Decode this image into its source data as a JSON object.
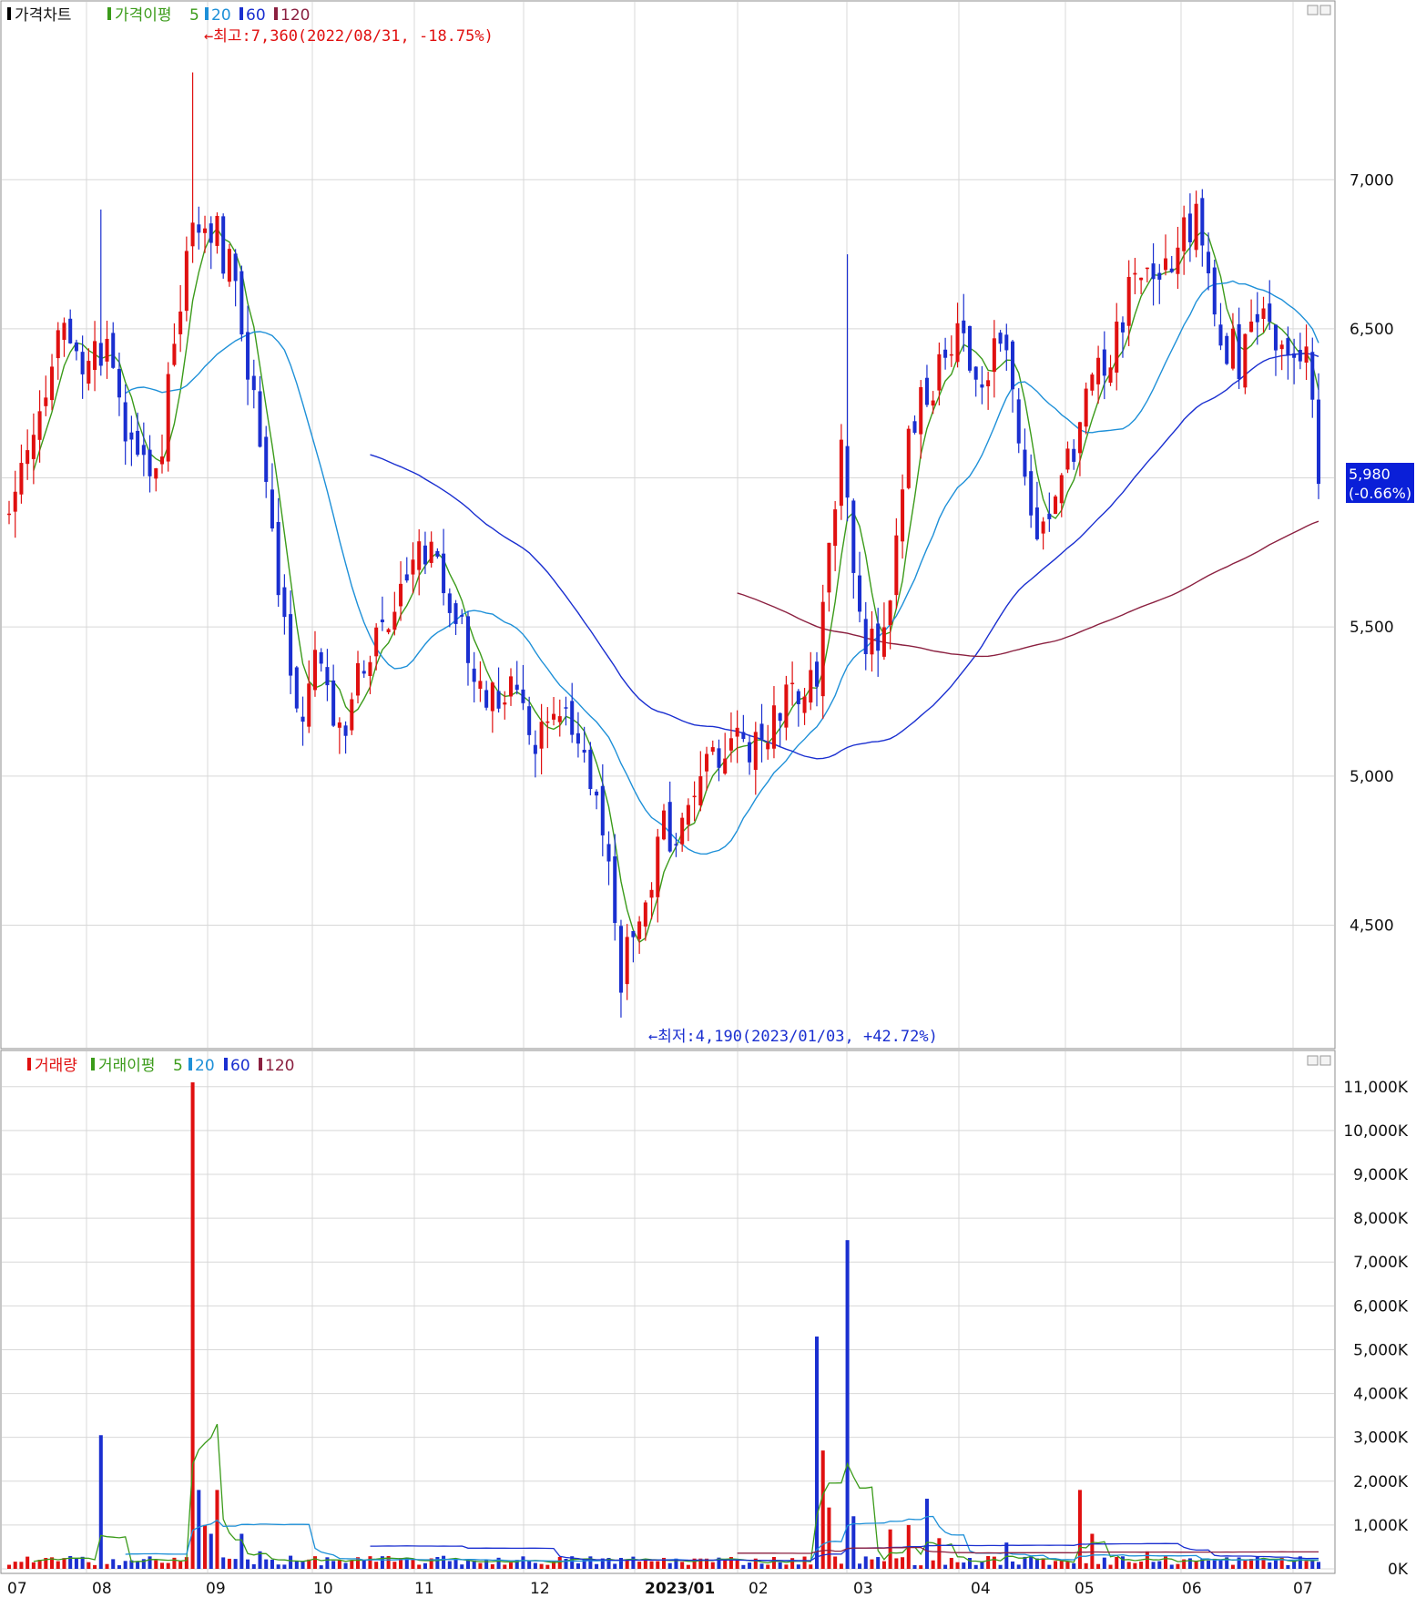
{
  "price_legend": [
    {
      "label": "가격차트",
      "color": "#000000"
    },
    {
      "label": "가격이평",
      "color": "#3b9b1a"
    },
    {
      "label": "5",
      "color": "#3b9b1a"
    },
    {
      "label": "20",
      "color": "#1e90d8"
    },
    {
      "label": "60",
      "color": "#1a2fd0"
    },
    {
      "label": "120",
      "color": "#8b2040"
    }
  ],
  "volume_legend": [
    {
      "label": "거래량",
      "color": "#e01010"
    },
    {
      "label": "거래이평",
      "color": "#3b9b1a"
    },
    {
      "label": "5",
      "color": "#3b9b1a"
    },
    {
      "label": "20",
      "color": "#1e90d8"
    },
    {
      "label": "60",
      "color": "#1a2fd0"
    },
    {
      "label": "120",
      "color": "#8b2040"
    }
  ],
  "annotations": {
    "high": "←최고:7,360(2022/08/31, -18.75%)",
    "low": "←최저:4,190(2023/01/03, +42.72%)"
  },
  "current_price": {
    "value": "5,980",
    "change": "(-0.66%)"
  },
  "colors": {
    "up": "#e01010",
    "down": "#1a2fd0",
    "ma5": "#3b9b1a",
    "ma20": "#1e90d8",
    "ma60": "#1a2fd0",
    "ma120": "#8b2040",
    "grid": "#d8d8d8",
    "badge": "#0a1fd8"
  },
  "chart_data": [
    {
      "type": "candlestick",
      "name": "가격차트",
      "y_ticks": [
        "4,500",
        "5,000",
        "5,500",
        "6,000",
        "6,500",
        "7,000"
      ],
      "y_tick_values": [
        4500,
        5000,
        5500,
        6000,
        6500,
        7000
      ],
      "ylim": [
        4150,
        7450
      ],
      "x_tick_labels": [
        "07",
        "08",
        "09",
        "10",
        "11",
        "12",
        "2023/01",
        "02",
        "03",
        "04",
        "05",
        "06",
        "07"
      ],
      "ma_periods": [
        5,
        20,
        60,
        120
      ],
      "anchors": [
        [
          0,
          5850
        ],
        [
          3,
          6050
        ],
        [
          8,
          6500
        ],
        [
          12,
          6350
        ],
        [
          16,
          6450
        ],
        [
          20,
          6100
        ],
        [
          24,
          6000
        ],
        [
          30,
          6900
        ],
        [
          34,
          6800
        ],
        [
          36,
          6700
        ],
        [
          40,
          6250
        ],
        [
          43,
          5800
        ],
        [
          47,
          5200
        ],
        [
          50,
          5350
        ],
        [
          54,
          5150
        ],
        [
          58,
          5400
        ],
        [
          62,
          5550
        ],
        [
          66,
          5700
        ],
        [
          70,
          5750
        ],
        [
          74,
          5500
        ],
        [
          78,
          5250
        ],
        [
          82,
          5350
        ],
        [
          86,
          5150
        ],
        [
          90,
          5250
        ],
        [
          94,
          5050
        ],
        [
          97,
          4800
        ],
        [
          100,
          4350
        ],
        [
          103,
          4450
        ],
        [
          106,
          4800
        ],
        [
          110,
          4850
        ],
        [
          114,
          5050
        ],
        [
          118,
          5150
        ],
        [
          122,
          5100
        ],
        [
          126,
          5250
        ],
        [
          129,
          5300
        ],
        [
          132,
          5350
        ],
        [
          134,
          5800
        ],
        [
          136,
          6050
        ],
        [
          138,
          5750
        ],
        [
          140,
          5400
        ],
        [
          144,
          5600
        ],
        [
          147,
          6150
        ],
        [
          151,
          6300
        ],
        [
          155,
          6450
        ],
        [
          159,
          6300
        ],
        [
          163,
          6500
        ],
        [
          166,
          6000
        ],
        [
          169,
          5800
        ],
        [
          173,
          6050
        ],
        [
          176,
          6300
        ],
        [
          179,
          6400
        ],
        [
          183,
          6600
        ],
        [
          187,
          6650
        ],
        [
          191,
          6800
        ],
        [
          194,
          6850
        ],
        [
          197,
          6500
        ],
        [
          201,
          6400
        ],
        [
          205,
          6550
        ],
        [
          209,
          6350
        ],
        [
          212,
          6400
        ],
        [
          214,
          5980
        ]
      ],
      "high": {
        "date": "2022/08/31",
        "value": 7360
      },
      "low": {
        "date": "2023/01/03",
        "value": 4190
      },
      "last": {
        "value": 5980,
        "change_pct": -0.66
      }
    },
    {
      "type": "bar",
      "name": "거래량",
      "y_ticks": [
        "0K",
        "1,000K",
        "2,000K",
        "3,000K",
        "4,000K",
        "5,000K",
        "6,000K",
        "7,000K",
        "8,000K",
        "9,000K",
        "10,000K",
        "11,000K"
      ],
      "y_tick_values": [
        0,
        1000,
        2000,
        3000,
        4000,
        5000,
        6000,
        7000,
        8000,
        9000,
        10000,
        11000
      ],
      "ylim": [
        0,
        11100
      ],
      "spikes": [
        [
          15,
          3050
        ],
        [
          30,
          11100
        ],
        [
          31,
          1800
        ],
        [
          32,
          1000
        ],
        [
          33,
          800
        ],
        [
          34,
          1800
        ],
        [
          38,
          800
        ],
        [
          41,
          400
        ],
        [
          132,
          5300
        ],
        [
          133,
          2700
        ],
        [
          134,
          1400
        ],
        [
          137,
          7500
        ],
        [
          138,
          1200
        ],
        [
          144,
          900
        ],
        [
          147,
          1000
        ],
        [
          150,
          1600
        ],
        [
          152,
          700
        ],
        [
          163,
          600
        ],
        [
          175,
          1800
        ],
        [
          177,
          800
        ],
        [
          186,
          400
        ]
      ]
    }
  ]
}
